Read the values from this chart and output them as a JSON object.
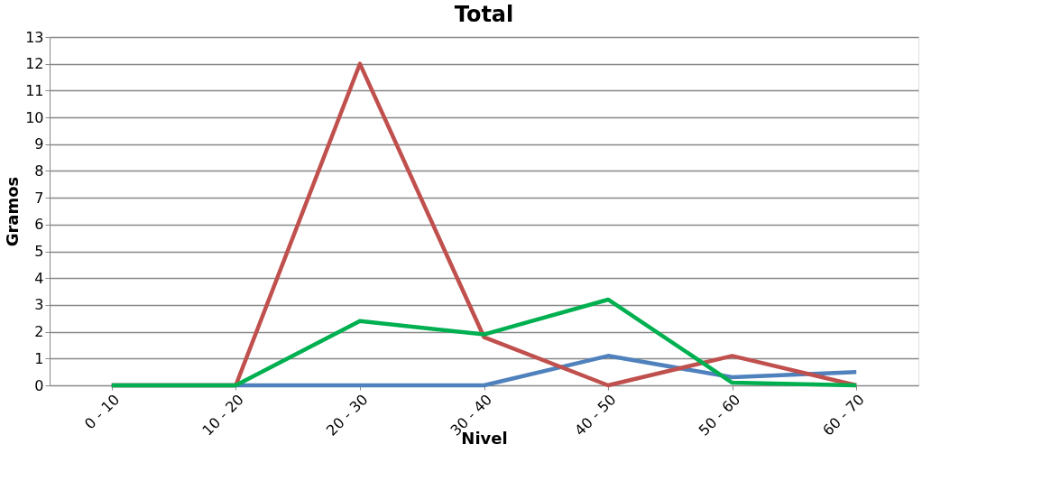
{
  "chart_data": {
    "type": "line",
    "title": "Total",
    "xlabel": "Nivel",
    "ylabel": "Gramos",
    "categories": [
      "0 - 10",
      "10 - 20",
      "20 - 30",
      "30 - 40",
      "40 - 50",
      "50 - 60",
      "60 - 70"
    ],
    "series": [
      {
        "color": "#4f81bd",
        "values": [
          0,
          0,
          0,
          0,
          1.1,
          0.3,
          0.5
        ]
      },
      {
        "color": "#c0504d",
        "values": [
          0,
          0,
          12,
          1.8,
          0,
          1.1,
          0
        ]
      },
      {
        "color": "#00b050",
        "values": [
          0,
          0,
          2.4,
          1.9,
          3.2,
          0.1,
          0
        ]
      }
    ],
    "ylim": [
      0,
      13
    ],
    "yticks": [
      0,
      1,
      2,
      3,
      4,
      5,
      6,
      7,
      8,
      9,
      10,
      11,
      12,
      13
    ],
    "grid": "y",
    "legend": false,
    "marker": "none",
    "line_style": "solid"
  }
}
